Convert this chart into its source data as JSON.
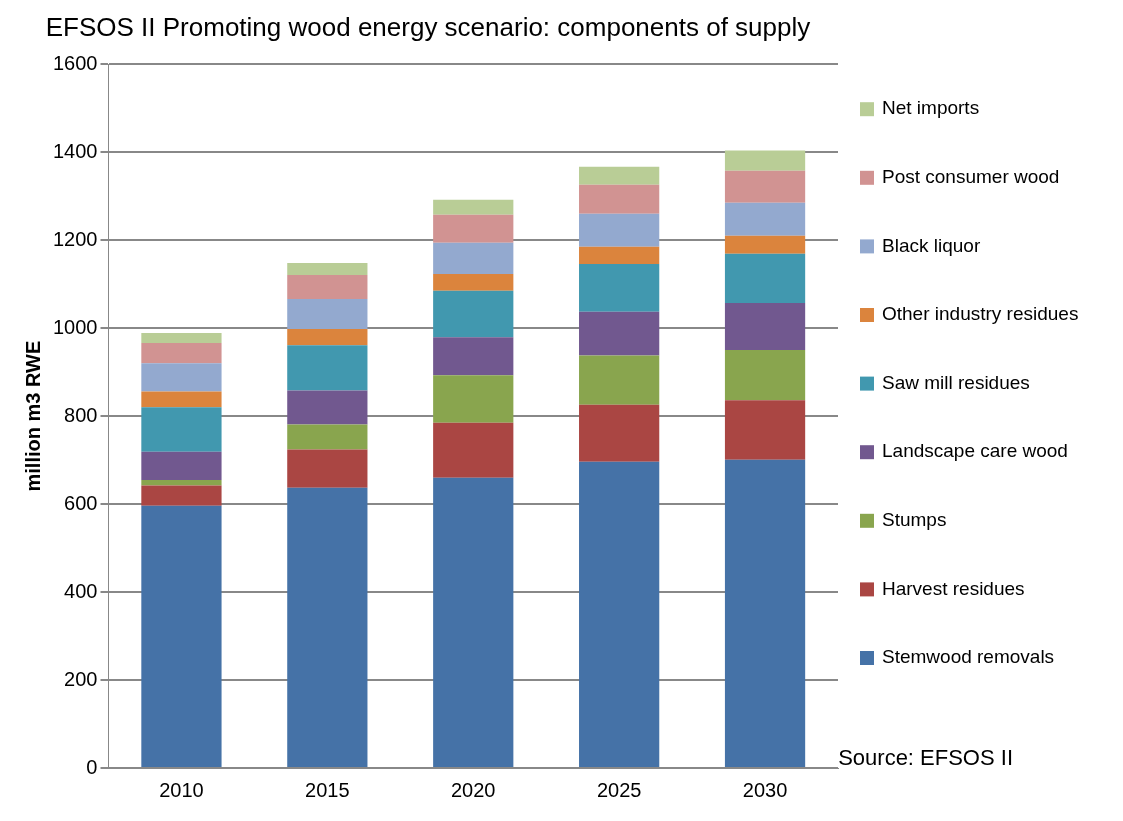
{
  "chart_data": {
    "type": "bar",
    "title": "EFSOS II Promoting wood energy scenario: components of supply",
    "ylabel": "million m3 RWE",
    "categories": [
      "2010",
      "2015",
      "2020",
      "2025",
      "2030"
    ],
    "stacked": true,
    "ylim": [
      0,
      1600
    ],
    "yticks": [
      0,
      200,
      400,
      600,
      800,
      1000,
      1200,
      1400,
      1600
    ],
    "grid": "y",
    "legend": "right",
    "annotations": [
      "Source: EFSOS II"
    ],
    "series": [
      {
        "name": "Stemwood removals",
        "color": "#4572a7",
        "values": [
          596,
          637,
          660,
          696,
          701
        ]
      },
      {
        "name": "Harvest residues",
        "color": "#aa4643",
        "values": [
          46,
          87,
          125,
          130,
          135
        ]
      },
      {
        "name": "Stumps",
        "color": "#89a54e",
        "values": [
          13,
          57,
          108,
          112,
          114
        ]
      },
      {
        "name": "Landscape care wood",
        "color": "#71588f",
        "values": [
          64,
          77,
          86,
          99,
          107
        ]
      },
      {
        "name": "Saw mill residues",
        "color": "#4198af",
        "values": [
          101,
          103,
          106,
          109,
          112
        ]
      },
      {
        "name": "Other industry residues",
        "color": "#db843d",
        "values": [
          36,
          37,
          38,
          39,
          41
        ]
      },
      {
        "name": "Black liquor",
        "color": "#93a9cf",
        "values": [
          64,
          68,
          71,
          75,
          75
        ]
      },
      {
        "name": "Post consumer wood",
        "color": "#d19392",
        "values": [
          46,
          55,
          64,
          66,
          73
        ]
      },
      {
        "name": "Net imports",
        "color": "#b9cd96",
        "values": [
          23,
          27,
          34,
          41,
          46
        ]
      }
    ]
  }
}
